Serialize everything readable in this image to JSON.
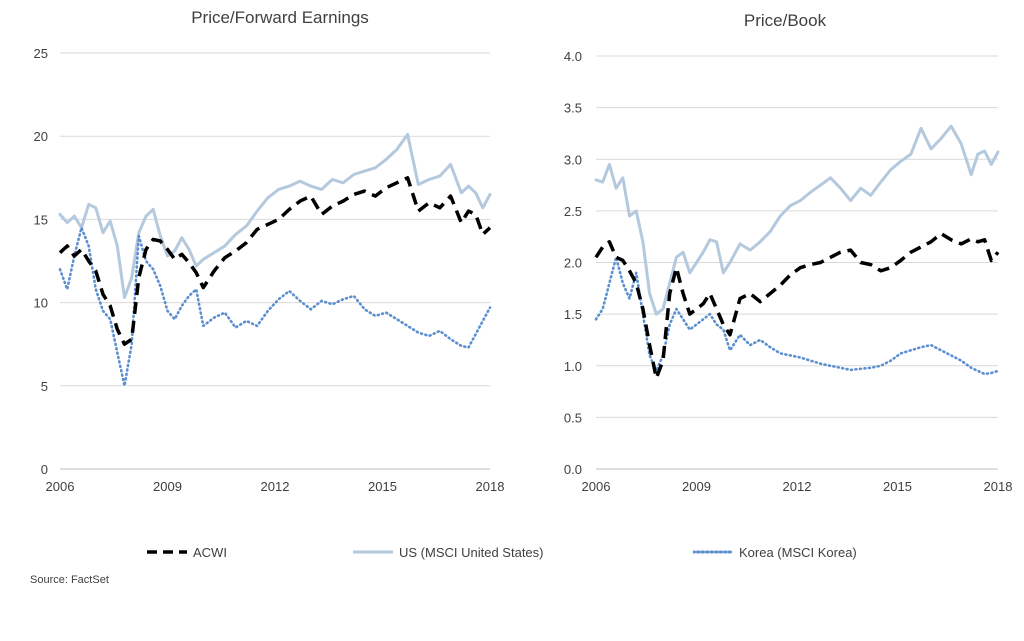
{
  "source": "Source: FactSet",
  "colors": {
    "acwi": "#000000",
    "us": "#b4c9dd",
    "korea": "#5b8fd0",
    "grid": "#d9d9d9",
    "text": "#404040"
  },
  "legend": [
    {
      "key": "acwi",
      "label": "ACWI"
    },
    {
      "key": "us",
      "label": "US (MSCI United States)"
    },
    {
      "key": "korea",
      "label": "Korea (MSCI Korea)"
    }
  ],
  "chart_data": [
    {
      "type": "line",
      "title": "Price/Forward Earnings",
      "xlim": [
        2006,
        2018
      ],
      "ylim": [
        0,
        25
      ],
      "xticks": [
        "2006",
        "2009",
        "2012",
        "2015",
        "2018"
      ],
      "yticks": [
        "0",
        "5",
        "10",
        "15",
        "20",
        "25"
      ],
      "grid": "horizontal",
      "series": [
        {
          "name": "ACWI",
          "key": "acwi",
          "x": [
            2006.0,
            2006.2,
            2006.4,
            2006.6,
            2006.8,
            2007.0,
            2007.2,
            2007.4,
            2007.6,
            2007.8,
            2008.0,
            2008.2,
            2008.4,
            2008.6,
            2008.8,
            2009.0,
            2009.2,
            2009.4,
            2009.6,
            2009.8,
            2010.0,
            2010.3,
            2010.6,
            2010.9,
            2011.2,
            2011.5,
            2011.8,
            2012.1,
            2012.4,
            2012.7,
            2013.0,
            2013.3,
            2013.6,
            2013.9,
            2014.2,
            2014.5,
            2014.8,
            2015.1,
            2015.4,
            2015.7,
            2016.0,
            2016.3,
            2016.6,
            2016.9,
            2017.2,
            2017.4,
            2017.6,
            2017.8,
            2018.0
          ],
          "y": [
            13.0,
            13.4,
            12.8,
            13.2,
            12.5,
            11.9,
            10.5,
            9.8,
            8.4,
            7.5,
            7.8,
            11.5,
            13.2,
            13.8,
            13.7,
            13.2,
            12.6,
            12.9,
            12.4,
            11.8,
            10.9,
            11.9,
            12.7,
            13.1,
            13.6,
            14.4,
            14.7,
            15.0,
            15.6,
            16.1,
            16.4,
            15.3,
            15.8,
            16.1,
            16.5,
            16.7,
            16.4,
            16.9,
            17.2,
            17.5,
            15.5,
            16.0,
            15.7,
            16.4,
            14.8,
            15.5,
            15.3,
            14.1,
            14.5
          ]
        },
        {
          "name": "US (MSCI United States)",
          "key": "us",
          "x": [
            2006.0,
            2006.2,
            2006.4,
            2006.6,
            2006.8,
            2007.0,
            2007.2,
            2007.4,
            2007.6,
            2007.8,
            2008.0,
            2008.2,
            2008.4,
            2008.6,
            2008.8,
            2009.0,
            2009.2,
            2009.4,
            2009.6,
            2009.8,
            2010.0,
            2010.3,
            2010.6,
            2010.9,
            2011.2,
            2011.5,
            2011.8,
            2012.1,
            2012.4,
            2012.7,
            2013.0,
            2013.3,
            2013.6,
            2013.9,
            2014.2,
            2014.5,
            2014.8,
            2015.1,
            2015.4,
            2015.7,
            2016.0,
            2016.3,
            2016.6,
            2016.9,
            2017.2,
            2017.4,
            2017.6,
            2017.8,
            2018.0
          ],
          "y": [
            15.3,
            14.8,
            15.2,
            14.5,
            15.9,
            15.7,
            14.2,
            14.9,
            13.4,
            10.3,
            11.5,
            14.2,
            15.2,
            15.6,
            14.0,
            12.8,
            13.1,
            13.9,
            13.2,
            12.2,
            12.6,
            13.0,
            13.4,
            14.1,
            14.6,
            15.5,
            16.3,
            16.8,
            17.0,
            17.3,
            17.0,
            16.8,
            17.4,
            17.2,
            17.7,
            17.9,
            18.1,
            18.6,
            19.2,
            20.1,
            17.1,
            17.4,
            17.6,
            18.3,
            16.6,
            17.0,
            16.6,
            15.7,
            16.5
          ]
        },
        {
          "name": "Korea (MSCI Korea)",
          "key": "korea",
          "x": [
            2006.0,
            2006.2,
            2006.4,
            2006.6,
            2006.8,
            2007.0,
            2007.2,
            2007.4,
            2007.6,
            2007.8,
            2008.0,
            2008.2,
            2008.4,
            2008.6,
            2008.8,
            2009.0,
            2009.2,
            2009.4,
            2009.6,
            2009.8,
            2010.0,
            2010.3,
            2010.6,
            2010.9,
            2011.2,
            2011.5,
            2011.8,
            2012.1,
            2012.4,
            2012.7,
            2013.0,
            2013.3,
            2013.6,
            2013.9,
            2014.2,
            2014.5,
            2014.8,
            2015.1,
            2015.4,
            2015.7,
            2016.0,
            2016.3,
            2016.6,
            2016.9,
            2017.2,
            2017.4,
            2017.6,
            2017.8,
            2018.0
          ],
          "y": [
            12.0,
            10.8,
            12.8,
            14.5,
            13.4,
            10.8,
            9.5,
            9.0,
            7.0,
            5.0,
            7.5,
            14.0,
            12.5,
            12.0,
            11.0,
            9.5,
            9.0,
            9.8,
            10.4,
            10.8,
            8.6,
            9.1,
            9.4,
            8.5,
            8.9,
            8.6,
            9.5,
            10.2,
            10.7,
            10.1,
            9.6,
            10.1,
            9.9,
            10.2,
            10.4,
            9.6,
            9.2,
            9.4,
            9.0,
            8.6,
            8.2,
            8.0,
            8.3,
            7.8,
            7.4,
            7.3,
            8.1,
            8.9,
            9.7
          ]
        }
      ]
    },
    {
      "type": "line",
      "title": "Price/Book",
      "xlim": [
        2006,
        2018
      ],
      "ylim": [
        0,
        4
      ],
      "xticks": [
        "2006",
        "2009",
        "2012",
        "2015",
        "2018"
      ],
      "yticks": [
        "0.0",
        "0.5",
        "1.0",
        "1.5",
        "2.0",
        "2.5",
        "3.0",
        "3.5",
        "4.0"
      ],
      "grid": "horizontal",
      "series": [
        {
          "name": "ACWI",
          "key": "acwi",
          "x": [
            2006.0,
            2006.2,
            2006.4,
            2006.6,
            2006.8,
            2007.0,
            2007.2,
            2007.4,
            2007.6,
            2007.8,
            2008.0,
            2008.2,
            2008.4,
            2008.6,
            2008.8,
            2009.0,
            2009.2,
            2009.4,
            2009.6,
            2009.8,
            2010.0,
            2010.3,
            2010.6,
            2010.9,
            2011.2,
            2011.5,
            2011.8,
            2012.1,
            2012.4,
            2012.7,
            2013.0,
            2013.3,
            2013.6,
            2013.9,
            2014.2,
            2014.5,
            2014.8,
            2015.1,
            2015.4,
            2015.7,
            2016.0,
            2016.3,
            2016.6,
            2016.9,
            2017.2,
            2017.4,
            2017.6,
            2017.8,
            2018.0
          ],
          "y": [
            2.05,
            2.15,
            2.2,
            2.05,
            2.02,
            1.92,
            1.8,
            1.55,
            1.2,
            0.88,
            1.05,
            1.7,
            1.95,
            1.7,
            1.5,
            1.55,
            1.6,
            1.7,
            1.55,
            1.4,
            1.3,
            1.65,
            1.7,
            1.62,
            1.7,
            1.78,
            1.88,
            1.95,
            1.98,
            2.0,
            2.05,
            2.1,
            2.12,
            2.0,
            1.98,
            1.92,
            1.95,
            2.02,
            2.1,
            2.15,
            2.2,
            2.28,
            2.22,
            2.18,
            2.23,
            2.2,
            2.22,
            2.02,
            2.1
          ]
        },
        {
          "name": "US (MSCI United States)",
          "key": "us",
          "x": [
            2006.0,
            2006.2,
            2006.4,
            2006.6,
            2006.8,
            2007.0,
            2007.2,
            2007.4,
            2007.6,
            2007.8,
            2008.0,
            2008.2,
            2008.4,
            2008.6,
            2008.8,
            2009.0,
            2009.2,
            2009.4,
            2009.6,
            2009.8,
            2010.0,
            2010.3,
            2010.6,
            2010.9,
            2011.2,
            2011.5,
            2011.8,
            2012.1,
            2012.4,
            2012.7,
            2013.0,
            2013.3,
            2013.6,
            2013.9,
            2014.2,
            2014.5,
            2014.8,
            2015.1,
            2015.4,
            2015.7,
            2016.0,
            2016.3,
            2016.6,
            2016.9,
            2017.2,
            2017.4,
            2017.6,
            2017.8,
            2018.0
          ],
          "y": [
            2.8,
            2.78,
            2.95,
            2.72,
            2.82,
            2.45,
            2.5,
            2.2,
            1.7,
            1.5,
            1.55,
            1.8,
            2.05,
            2.1,
            1.9,
            2.0,
            2.1,
            2.22,
            2.2,
            1.9,
            2.0,
            2.18,
            2.12,
            2.2,
            2.3,
            2.45,
            2.55,
            2.6,
            2.68,
            2.75,
            2.82,
            2.72,
            2.6,
            2.72,
            2.65,
            2.78,
            2.9,
            2.98,
            3.05,
            3.3,
            3.1,
            3.2,
            3.32,
            3.15,
            2.85,
            3.05,
            3.08,
            2.95,
            3.07
          ]
        },
        {
          "name": "Korea (MSCI Korea)",
          "key": "korea",
          "x": [
            2006.0,
            2006.2,
            2006.4,
            2006.6,
            2006.8,
            2007.0,
            2007.2,
            2007.4,
            2007.6,
            2007.8,
            2008.0,
            2008.2,
            2008.4,
            2008.6,
            2008.8,
            2009.0,
            2009.2,
            2009.4,
            2009.6,
            2009.8,
            2010.0,
            2010.3,
            2010.6,
            2010.9,
            2011.2,
            2011.5,
            2011.8,
            2012.1,
            2012.4,
            2012.7,
            2013.0,
            2013.3,
            2013.6,
            2013.9,
            2014.2,
            2014.5,
            2014.8,
            2015.1,
            2015.4,
            2015.7,
            2016.0,
            2016.3,
            2016.6,
            2016.9,
            2017.2,
            2017.4,
            2017.6,
            2017.8,
            2018.0
          ],
          "y": [
            1.45,
            1.55,
            1.8,
            2.05,
            1.8,
            1.65,
            1.9,
            1.5,
            1.1,
            0.95,
            1.1,
            1.4,
            1.55,
            1.45,
            1.35,
            1.4,
            1.45,
            1.5,
            1.4,
            1.35,
            1.15,
            1.3,
            1.2,
            1.25,
            1.18,
            1.12,
            1.1,
            1.08,
            1.05,
            1.02,
            1.0,
            0.98,
            0.96,
            0.97,
            0.98,
            1.0,
            1.05,
            1.12,
            1.15,
            1.18,
            1.2,
            1.15,
            1.1,
            1.05,
            0.98,
            0.95,
            0.92,
            0.93,
            0.95
          ]
        }
      ]
    }
  ]
}
